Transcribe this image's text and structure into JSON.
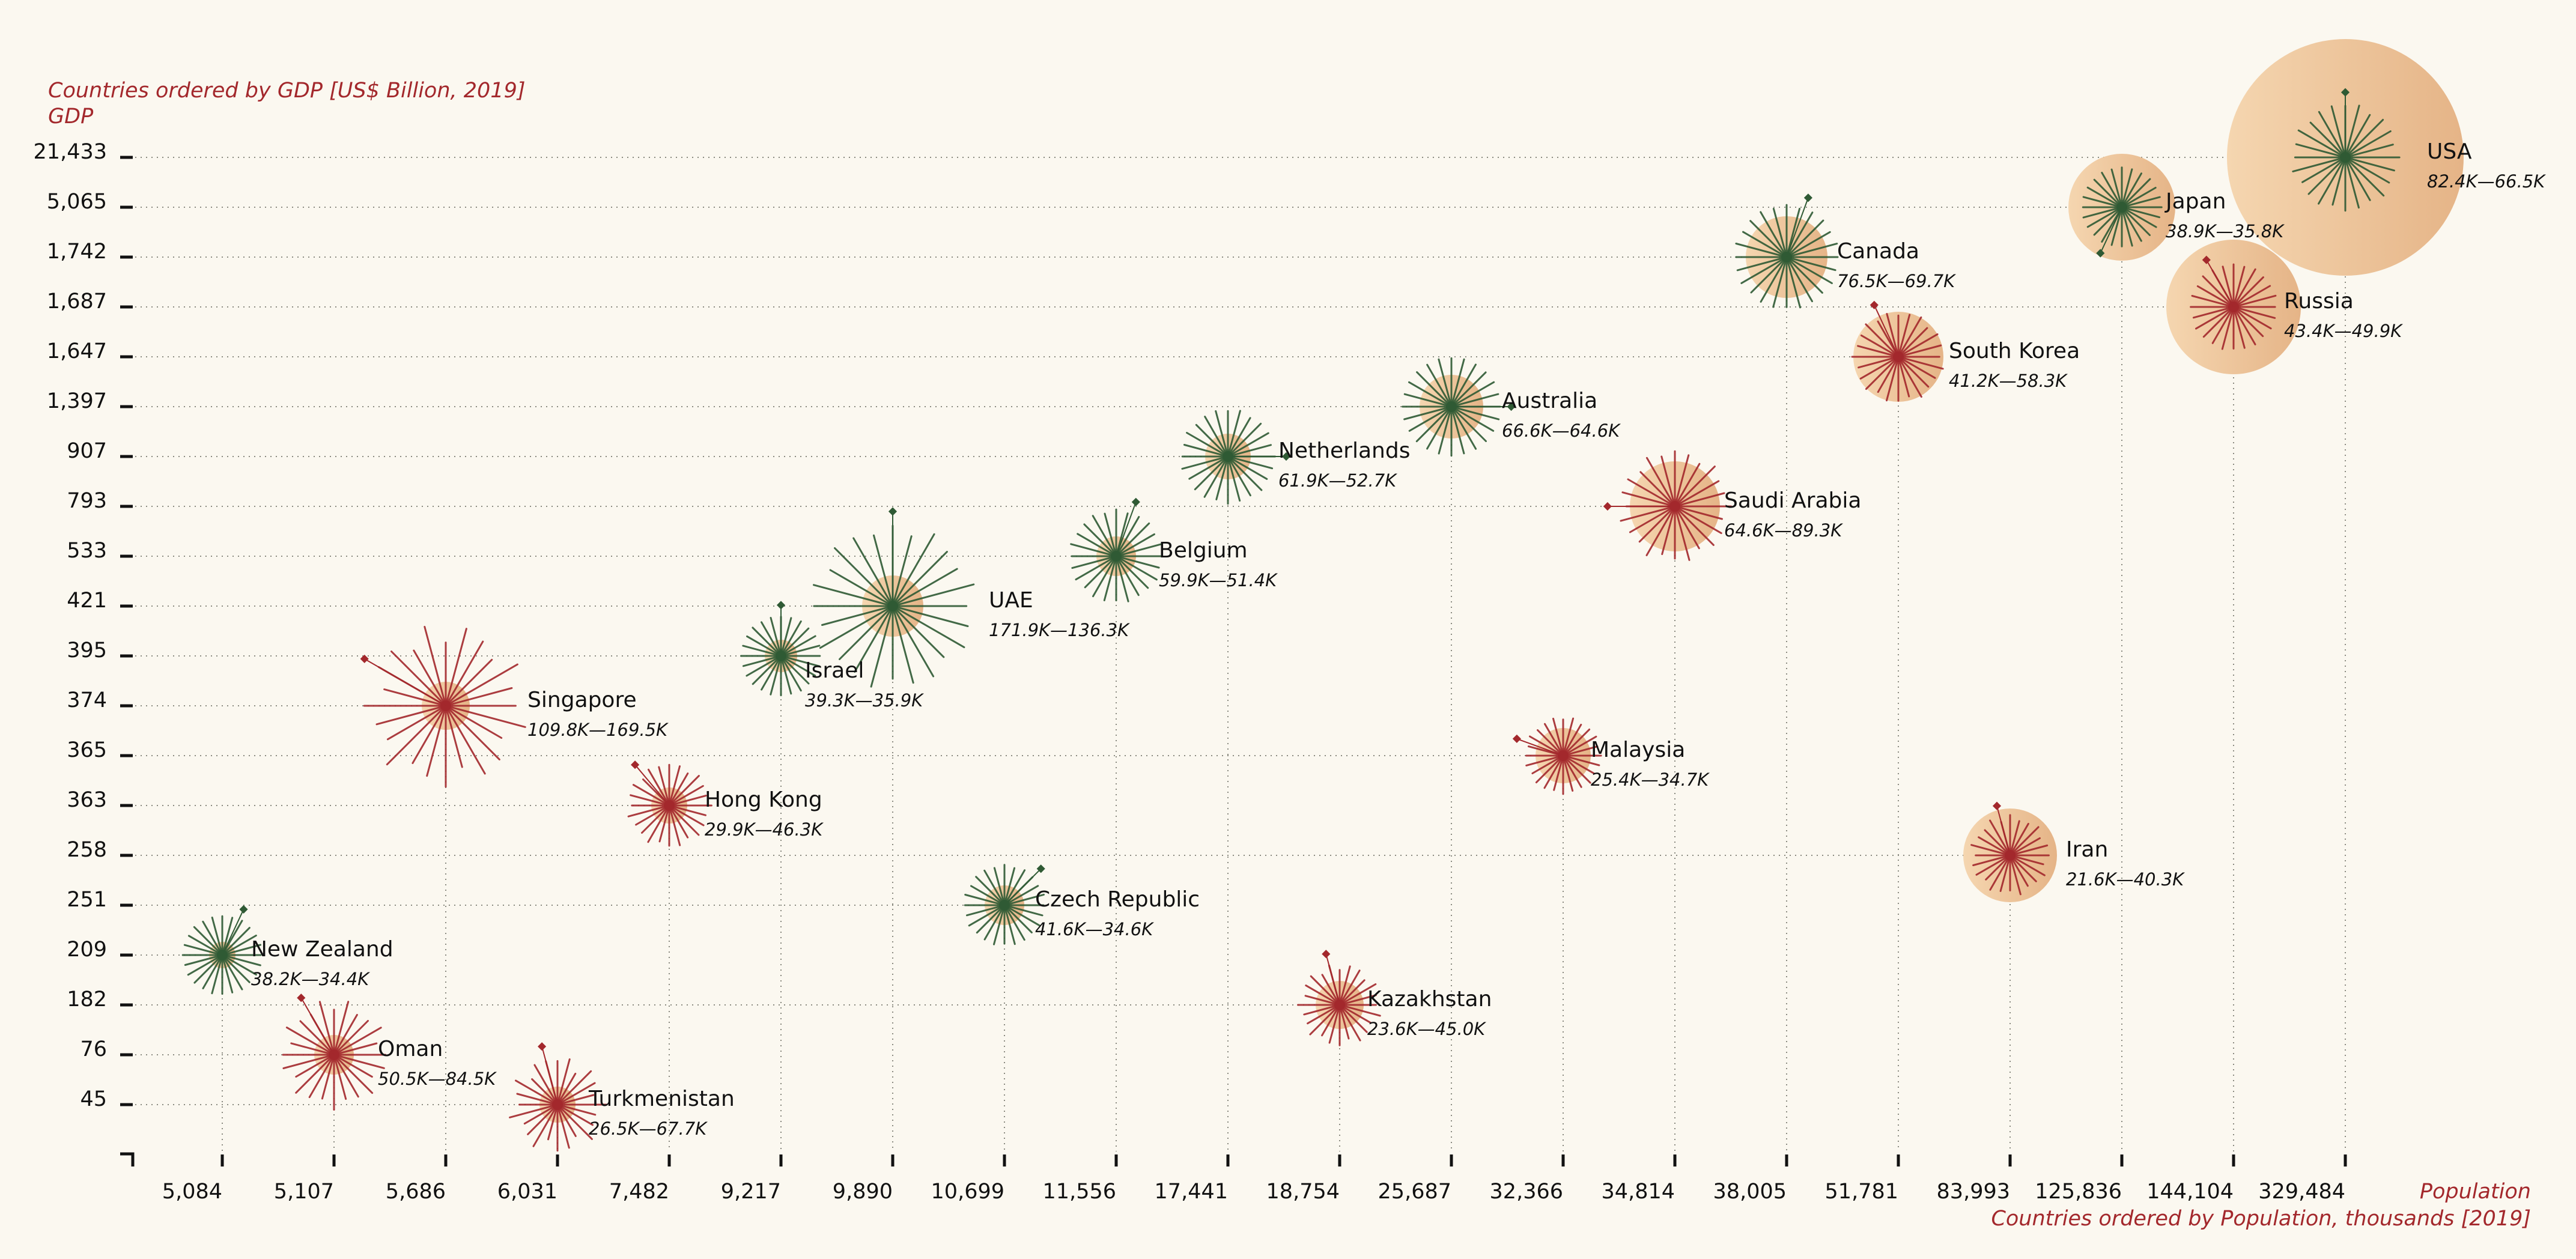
{
  "chart_data": {
    "type": "scatter",
    "title": "Countries ordered by GDP [US$ Billion, 2019]",
    "ylabel": "GDP",
    "xlabel": "Population",
    "x_subtitle": "Countries ordered by Population, thousands [2019]",
    "x_scale": "ordinal (rank by population)",
    "y_scale": "ordinal (rank by GDP)",
    "grid": true,
    "x_ticks": [
      "5,084",
      "5,107",
      "5,686",
      "6,031",
      "7,482",
      "9,217",
      "9,890",
      "10,699",
      "11,556",
      "17,441",
      "18,754",
      "25,687",
      "32,366",
      "34,814",
      "38,005",
      "51,781",
      "83,993",
      "125,836",
      "144,104",
      "329,484"
    ],
    "y_ticks": [
      "21,433",
      "5,065",
      "1,742",
      "1,687",
      "1,647",
      "1,397",
      "907",
      "793",
      "533",
      "421",
      "395",
      "374",
      "365",
      "363",
      "258",
      "251",
      "209",
      "182",
      "76",
      "45"
    ],
    "colors": {
      "background": "#fbf8f0",
      "first_greater": "#2f5a34",
      "first_smaller": "#a3282c",
      "bubble_light": "#f4d3ad",
      "bubble_dark": "#e8b88c",
      "title": "#a3282c",
      "text": "#111111"
    },
    "points": [
      {
        "name": "USA",
        "gdp": 21433,
        "population": 329484,
        "range": "82.4K—66.5K",
        "low": 82.4,
        "high": 66.5
      },
      {
        "name": "Japan",
        "gdp": 5065,
        "population": 125836,
        "range": "38.9K—35.8K",
        "low": 38.9,
        "high": 35.8
      },
      {
        "name": "Canada",
        "gdp": 1742,
        "population": 38005,
        "range": "76.5K—69.7K",
        "low": 76.5,
        "high": 69.7
      },
      {
        "name": "Russia",
        "gdp": 1687,
        "population": 144104,
        "range": "43.4K—49.9K",
        "low": 43.4,
        "high": 49.9
      },
      {
        "name": "South Korea",
        "gdp": 1647,
        "population": 51781,
        "range": "41.2K—58.3K",
        "low": 41.2,
        "high": 58.3
      },
      {
        "name": "Australia",
        "gdp": 1397,
        "population": 25687,
        "range": "66.6K—64.6K",
        "low": 66.6,
        "high": 64.6
      },
      {
        "name": "Netherlands",
        "gdp": 907,
        "population": 17441,
        "range": "61.9K—52.7K",
        "low": 61.9,
        "high": 52.7
      },
      {
        "name": "Saudi Arabia",
        "gdp": 793,
        "population": 34814,
        "range": "64.6K—89.3K",
        "low": 64.6,
        "high": 89.3
      },
      {
        "name": "Belgium",
        "gdp": 533,
        "population": 11556,
        "range": "59.9K—51.4K",
        "low": 59.9,
        "high": 51.4
      },
      {
        "name": "UAE",
        "gdp": 421,
        "population": 9890,
        "range": "171.9K—136.3K",
        "low": 171.9,
        "high": 136.3
      },
      {
        "name": "Israel",
        "gdp": 395,
        "population": 9217,
        "range": "39.3K—35.9K",
        "low": 39.3,
        "high": 35.9
      },
      {
        "name": "Singapore",
        "gdp": 374,
        "population": 5686,
        "range": "109.8K—169.5K",
        "low": 109.8,
        "high": 169.5
      },
      {
        "name": "Malaysia",
        "gdp": 365,
        "population": 32366,
        "range": "25.4K—34.7K",
        "low": 25.4,
        "high": 34.7
      },
      {
        "name": "Hong Kong",
        "gdp": 363,
        "population": 7482,
        "range": "29.9K—46.3K",
        "low": 29.9,
        "high": 46.3
      },
      {
        "name": "Iran",
        "gdp": 258,
        "population": 83993,
        "range": "21.6K—40.3K",
        "low": 21.6,
        "high": 40.3
      },
      {
        "name": "Czech Republic",
        "gdp": 251,
        "population": 10699,
        "range": "41.6K—34.6K",
        "low": 41.6,
        "high": 34.6
      },
      {
        "name": "New Zealand",
        "gdp": 209,
        "population": 5084,
        "range": "38.2K—34.4K",
        "low": 38.2,
        "high": 34.4
      },
      {
        "name": "Kazakhstan",
        "gdp": 182,
        "population": 18754,
        "range": "23.6K—45.0K",
        "low": 23.6,
        "high": 45.0
      },
      {
        "name": "Oman",
        "gdp": 76,
        "population": 5107,
        "range": "50.5K—84.5K",
        "low": 50.5,
        "high": 84.5
      },
      {
        "name": "Turkmenistan",
        "gdp": 45,
        "population": 6031,
        "range": "26.5K—67.7K",
        "low": 26.5,
        "high": 67.7
      }
    ]
  }
}
